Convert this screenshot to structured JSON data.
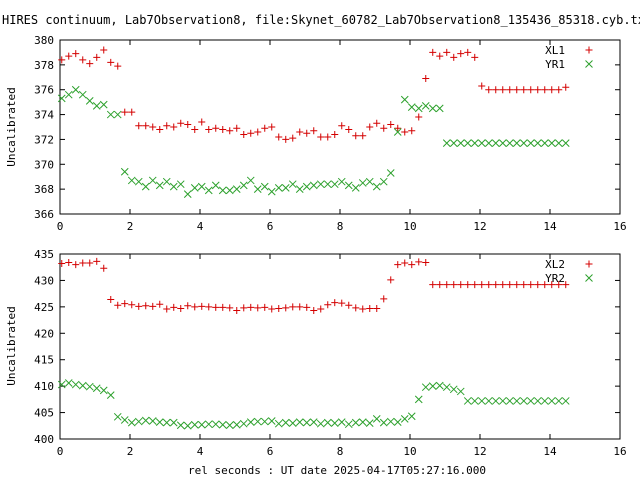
{
  "chart_title": "HIRES continuum, Lab7Observation8, file:Skynet_60782_Lab7Observation8_135436_85318.cyb.txt",
  "xlabel": "rel seconds : UT date 2025-04-17T05:27:16.000",
  "colors": {
    "xl": "#d40000",
    "yr": "#2ca02c"
  },
  "chart_data": [
    {
      "type": "scatter",
      "ylabel": "Uncalibrated",
      "xlim": [
        0,
        16
      ],
      "ylim": [
        366,
        380
      ],
      "xticks": [
        "0",
        "2",
        "4",
        "6",
        "8",
        "10",
        "12",
        "14",
        "16"
      ],
      "yticks": [
        "366",
        "368",
        "370",
        "372",
        "374",
        "376",
        "378",
        "380"
      ],
      "legend_position": "top-right",
      "x": [
        0.05,
        0.25,
        0.45,
        0.65,
        0.85,
        1.05,
        1.25,
        1.45,
        1.65,
        1.85,
        2.05,
        2.25,
        2.45,
        2.65,
        2.85,
        3.05,
        3.25,
        3.45,
        3.65,
        3.85,
        4.05,
        4.25,
        4.45,
        4.65,
        4.85,
        5.05,
        5.25,
        5.45,
        5.65,
        5.85,
        6.05,
        6.25,
        6.45,
        6.65,
        6.85,
        7.05,
        7.25,
        7.45,
        7.65,
        7.85,
        8.05,
        8.25,
        8.45,
        8.65,
        8.85,
        9.05,
        9.25,
        9.45,
        9.65,
        9.85,
        10.05,
        10.25,
        10.45,
        10.65,
        10.85,
        11.05,
        11.25,
        11.45,
        11.65,
        11.85,
        12.05,
        12.25,
        12.45,
        12.65,
        12.85,
        13.05,
        13.25,
        13.45,
        13.65,
        13.85,
        14.05,
        14.25,
        14.45
      ],
      "series": [
        {
          "name": "XL1",
          "marker": "plus",
          "values": [
            378.4,
            378.7,
            378.9,
            378.4,
            378.1,
            378.6,
            379.2,
            378.2,
            377.9,
            374.2,
            374.2,
            373.1,
            373.1,
            373.0,
            372.8,
            373.1,
            373.0,
            373.3,
            373.2,
            372.8,
            373.4,
            372.8,
            372.9,
            372.8,
            372.7,
            372.9,
            372.4,
            372.5,
            372.6,
            372.9,
            373.0,
            372.2,
            372.0,
            372.1,
            372.6,
            372.5,
            372.7,
            372.2,
            372.2,
            372.4,
            373.1,
            372.8,
            372.3,
            372.3,
            373.0,
            373.3,
            372.9,
            373.2,
            372.9,
            372.6,
            372.7,
            373.8,
            376.9,
            379.0,
            378.7,
            379.0,
            378.6,
            378.9,
            379.0,
            378.6,
            376.3,
            376.0,
            376.0,
            376.0,
            376.0,
            376.0,
            376.0,
            376.0,
            376.0,
            376.0,
            376.0,
            376.0,
            376.2
          ]
        },
        {
          "name": "YR1",
          "marker": "x",
          "values": [
            375.3,
            375.6,
            376.0,
            375.6,
            375.1,
            374.7,
            374.8,
            374.0,
            374.0,
            369.4,
            368.7,
            368.6,
            368.2,
            368.7,
            368.3,
            368.6,
            368.2,
            368.4,
            367.6,
            368.1,
            368.2,
            367.9,
            368.3,
            367.9,
            367.9,
            368.0,
            368.3,
            368.7,
            368.0,
            368.2,
            367.8,
            368.1,
            368.1,
            368.4,
            368.0,
            368.2,
            368.3,
            368.4,
            368.4,
            368.4,
            368.6,
            368.3,
            368.1,
            368.5,
            368.6,
            368.2,
            368.6,
            369.3,
            372.6,
            375.2,
            374.6,
            374.5,
            374.7,
            374.5,
            374.5,
            371.7,
            371.7,
            371.7,
            371.7,
            371.7,
            371.7,
            371.7,
            371.7,
            371.7,
            371.7,
            371.7,
            371.7,
            371.7,
            371.7,
            371.7,
            371.7,
            371.7,
            371.7
          ]
        }
      ]
    },
    {
      "type": "scatter",
      "ylabel": "Uncalibrated",
      "xlim": [
        0,
        16
      ],
      "ylim": [
        400,
        435
      ],
      "xticks": [
        "0",
        "2",
        "4",
        "6",
        "8",
        "10",
        "12",
        "14",
        "16"
      ],
      "yticks": [
        "400",
        "405",
        "410",
        "415",
        "420",
        "425",
        "430",
        "435"
      ],
      "legend_position": "top-right",
      "x": [
        0.05,
        0.25,
        0.45,
        0.65,
        0.85,
        1.05,
        1.25,
        1.45,
        1.65,
        1.85,
        2.05,
        2.25,
        2.45,
        2.65,
        2.85,
        3.05,
        3.25,
        3.45,
        3.65,
        3.85,
        4.05,
        4.25,
        4.45,
        4.65,
        4.85,
        5.05,
        5.25,
        5.45,
        5.65,
        5.85,
        6.05,
        6.25,
        6.45,
        6.65,
        6.85,
        7.05,
        7.25,
        7.45,
        7.65,
        7.85,
        8.05,
        8.25,
        8.45,
        8.65,
        8.85,
        9.05,
        9.25,
        9.45,
        9.65,
        9.85,
        10.05,
        10.25,
        10.45,
        10.65,
        10.85,
        11.05,
        11.25,
        11.45,
        11.65,
        11.85,
        12.05,
        12.25,
        12.45,
        12.65,
        12.85,
        13.05,
        13.25,
        13.45,
        13.65,
        13.85,
        14.05,
        14.25,
        14.45
      ],
      "series": [
        {
          "name": "XL2",
          "marker": "plus",
          "values": [
            433.2,
            433.4,
            433.0,
            433.3,
            433.3,
            433.6,
            432.3,
            426.4,
            425.3,
            425.6,
            425.4,
            425.1,
            425.2,
            425.1,
            425.5,
            424.6,
            424.9,
            424.7,
            425.2,
            425.0,
            425.1,
            425.0,
            424.9,
            424.9,
            424.8,
            424.3,
            424.8,
            424.9,
            424.8,
            424.9,
            424.6,
            424.7,
            424.8,
            425.0,
            425.0,
            424.9,
            424.3,
            424.6,
            425.4,
            425.8,
            425.7,
            425.3,
            424.8,
            424.6,
            424.7,
            424.7,
            426.5,
            430.1,
            433.0,
            433.3,
            433.0,
            433.5,
            433.4,
            429.2,
            429.2,
            429.2,
            429.2,
            429.2,
            429.2,
            429.2,
            429.2,
            429.2,
            429.2,
            429.2,
            429.2,
            429.2,
            429.2,
            429.2,
            429.2,
            429.2,
            429.2,
            429.2,
            429.2
          ]
        },
        {
          "name": "YR2",
          "marker": "x",
          "values": [
            410.3,
            410.6,
            410.3,
            410.1,
            409.9,
            409.6,
            409.2,
            408.3,
            404.2,
            403.6,
            403.1,
            403.3,
            403.5,
            403.4,
            403.2,
            403.1,
            403.1,
            402.6,
            402.5,
            402.7,
            402.7,
            402.8,
            402.8,
            402.7,
            402.6,
            402.7,
            402.9,
            403.2,
            403.3,
            403.3,
            403.4,
            402.9,
            403.1,
            403.0,
            403.2,
            403.1,
            403.2,
            402.9,
            403.1,
            403.0,
            403.2,
            402.8,
            403.1,
            403.2,
            403.0,
            403.8,
            403.1,
            403.3,
            403.2,
            403.8,
            404.3,
            407.5,
            409.8,
            410.0,
            410.1,
            409.8,
            409.4,
            409.0,
            407.2,
            407.2,
            407.2,
            407.2,
            407.2,
            407.2,
            407.2,
            407.2,
            407.2,
            407.2,
            407.2,
            407.2,
            407.2,
            407.2,
            407.2
          ]
        }
      ]
    }
  ]
}
